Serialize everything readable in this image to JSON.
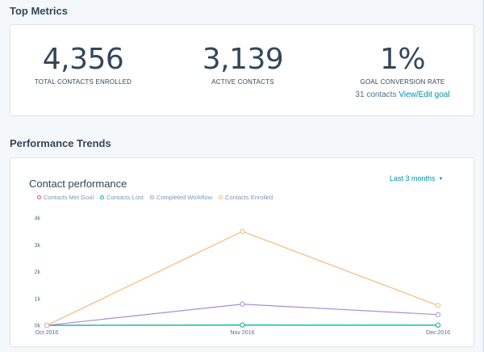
{
  "top_metrics": {
    "heading": "Top Metrics",
    "metrics": [
      {
        "value": "4,356",
        "label": "TOTAL CONTACTS ENROLLED"
      },
      {
        "value": "3,139",
        "label": "ACTIVE CONTACTS"
      },
      {
        "value": "1%",
        "label": "GOAL CONVERSION RATE",
        "sub_text": "31 contacts",
        "sub_link": "View/Edit goal"
      }
    ]
  },
  "performance": {
    "heading": "Performance Trends",
    "chart_title": "Contact performance",
    "range_label": "Last 3 months",
    "range_icon": "caret-down-icon"
  },
  "colors": {
    "met_goal": "#f2545b",
    "lost": "#00bda5",
    "completed": "#a78fd6",
    "enrolled": "#f5b87a",
    "link": "#0091ae"
  },
  "chart_data": {
    "type": "line",
    "title": "Contact performance",
    "categories": [
      "Oct 2016",
      "Nov 2016",
      "Dec 2016"
    ],
    "y_ticks": [
      "0k",
      "1k",
      "2k",
      "3k",
      "4k"
    ],
    "ylim": [
      0,
      4000
    ],
    "grid": false,
    "legend_position": "top-left",
    "series": [
      {
        "name": "Contacts Met Goal",
        "color": "#f2545b",
        "values": [
          0,
          10,
          5
        ]
      },
      {
        "name": "Contacts Lost",
        "color": "#00bda5",
        "values": [
          0,
          15,
          10
        ]
      },
      {
        "name": "Completed Workflow",
        "color": "#a78fd6",
        "values": [
          0,
          790,
          400
        ]
      },
      {
        "name": "Contacts Enrolled",
        "color": "#f5b87a",
        "values": [
          0,
          3500,
          740
        ]
      }
    ]
  }
}
